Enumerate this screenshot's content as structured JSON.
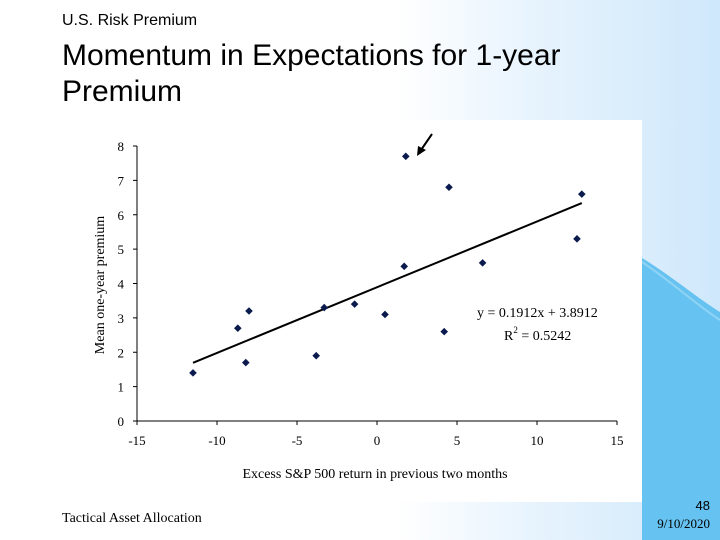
{
  "slide": {
    "subtitle": "U.S. Risk Premium",
    "title": "Momentum in Expectations for 1-year Premium",
    "footer": "Tactical Asset Allocation",
    "page_number": "48",
    "date": "9/10/2020"
  },
  "colors": {
    "accent_wave": "#66c2f0",
    "marker": "#0a1a4d"
  },
  "chart_data": {
    "type": "scatter",
    "title": "",
    "xlabel": "Excess S&P 500 return in previous two months",
    "ylabel": "Mean one-year premium",
    "xlim": [
      -15,
      15
    ],
    "ylim": [
      0,
      8
    ],
    "x_ticks": [
      "-15",
      "-10",
      "-5",
      "0",
      "5",
      "10",
      "15"
    ],
    "y_ticks": [
      "0",
      "1",
      "2",
      "3",
      "4",
      "5",
      "6",
      "7",
      "8"
    ],
    "grid": false,
    "series": [
      {
        "x": [
          -11.5,
          -8.7,
          -8.2,
          -8.0,
          -3.8,
          -3.3,
          -1.4,
          0.5,
          1.7,
          1.8,
          4.2,
          4.5,
          6.6,
          12.5,
          12.8
        ],
        "y": [
          1.4,
          2.7,
          1.7,
          3.2,
          1.9,
          3.3,
          3.4,
          3.1,
          4.5,
          7.7,
          2.6,
          6.8,
          4.6,
          5.3,
          6.6
        ]
      }
    ],
    "trendline": {
      "slope": 0.1912,
      "intercept": 3.8912,
      "x_range": [
        -11.5,
        12.8
      ]
    },
    "annotations": {
      "equation": "y = 0.1912x + 3.8912",
      "r_squared_label": "R",
      "r_squared_exp": "2",
      "r_squared_value": " = 0.5242",
      "arrow_points_to": [
        1.8,
        7.7
      ]
    }
  }
}
